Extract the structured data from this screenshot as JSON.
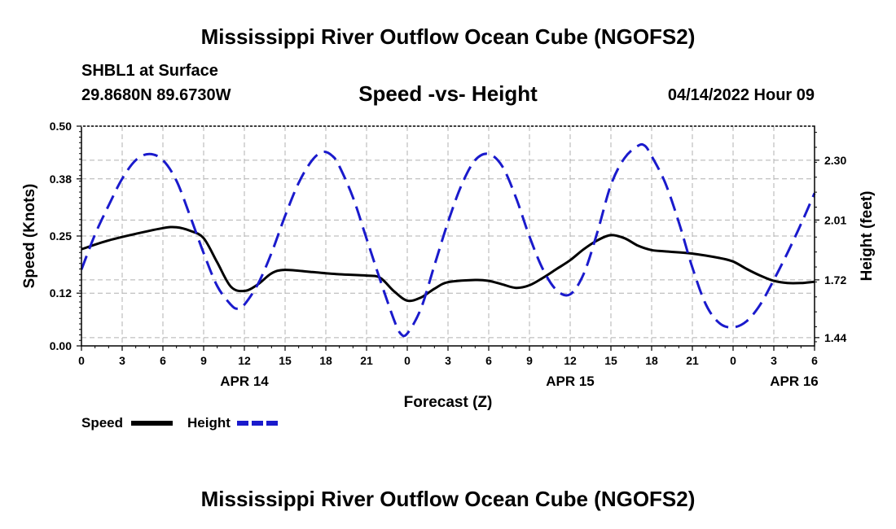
{
  "header": {
    "title": "Mississippi River Outflow Ocean Cube (NGOFS2)",
    "station": "SHBL1 at Surface",
    "coords": "29.8680N  89.6730W",
    "subtitle": "Speed -vs- Height",
    "datestamp": "04/14/2022 Hour 09"
  },
  "footer": {
    "title": "Mississippi River Outflow Ocean Cube (NGOFS2)"
  },
  "chart_data": {
    "type": "line",
    "title": "Speed -vs- Height",
    "xlabel": "Forecast (Z)",
    "ylabel_left": "Speed (Knots)",
    "ylabel_right": "Height (feet)",
    "x_range": [
      0,
      54
    ],
    "x_unit": "hours from APR 14 00Z",
    "x_tick_labels": [
      "0",
      "3",
      "6",
      "9",
      "12",
      "15",
      "18",
      "21",
      "0",
      "3",
      "6",
      "9",
      "12",
      "15",
      "18",
      "21",
      "0",
      "3",
      "6"
    ],
    "day_labels": [
      {
        "hour": 12,
        "label": "APR 14"
      },
      {
        "hour": 36,
        "label": "APR 15"
      },
      {
        "hour": 52.5,
        "label": "APR 16"
      }
    ],
    "left_axis": {
      "range": [
        0,
        0.5
      ],
      "ticks": [
        0.0,
        0.12,
        0.25,
        0.38,
        0.5
      ],
      "tick_labels": [
        "0.00",
        "0.12",
        "0.25",
        "0.38",
        "0.50"
      ]
    },
    "right_axis": {
      "range": [
        1.4,
        2.465
      ],
      "ticks": [
        1.44,
        1.72,
        2.01,
        2.3
      ],
      "tick_labels": [
        "1.44",
        "1.72",
        "2.01",
        "2.30"
      ]
    },
    "grid": true,
    "legend": {
      "position": "bottom-left",
      "items": [
        {
          "name": "Speed",
          "color": "#000000",
          "style": "solid"
        },
        {
          "name": "Height",
          "color": "#1a1acc",
          "style": "dashed"
        }
      ]
    },
    "series": [
      {
        "name": "Speed",
        "axis": "left",
        "color": "#000000",
        "points": [
          [
            0,
            0.22
          ],
          [
            2,
            0.24
          ],
          [
            4,
            0.255
          ],
          [
            6,
            0.268
          ],
          [
            7,
            0.27
          ],
          [
            8,
            0.262
          ],
          [
            9,
            0.245
          ],
          [
            10,
            0.19
          ],
          [
            11,
            0.135
          ],
          [
            12,
            0.125
          ],
          [
            13,
            0.14
          ],
          [
            14,
            0.165
          ],
          [
            15,
            0.173
          ],
          [
            17,
            0.168
          ],
          [
            19,
            0.163
          ],
          [
            21,
            0.16
          ],
          [
            22,
            0.155
          ],
          [
            23,
            0.125
          ],
          [
            24,
            0.103
          ],
          [
            25,
            0.11
          ],
          [
            26,
            0.13
          ],
          [
            27,
            0.145
          ],
          [
            29,
            0.15
          ],
          [
            30,
            0.148
          ],
          [
            31,
            0.14
          ],
          [
            32,
            0.132
          ],
          [
            33,
            0.138
          ],
          [
            34,
            0.155
          ],
          [
            35,
            0.175
          ],
          [
            36,
            0.195
          ],
          [
            37,
            0.22
          ],
          [
            38,
            0.24
          ],
          [
            39,
            0.252
          ],
          [
            40,
            0.245
          ],
          [
            41,
            0.228
          ],
          [
            42,
            0.218
          ],
          [
            43,
            0.215
          ],
          [
            45,
            0.21
          ],
          [
            47,
            0.2
          ],
          [
            48,
            0.192
          ],
          [
            49,
            0.175
          ],
          [
            50,
            0.16
          ],
          [
            51,
            0.148
          ],
          [
            52,
            0.143
          ],
          [
            53,
            0.143
          ],
          [
            54,
            0.146
          ]
        ]
      },
      {
        "name": "Height",
        "axis": "right",
        "color": "#1a1acc",
        "points": [
          [
            0,
            1.77
          ],
          [
            1,
            1.94
          ],
          [
            2,
            2.08
          ],
          [
            3,
            2.21
          ],
          [
            4,
            2.3
          ],
          [
            5,
            2.33
          ],
          [
            6,
            2.3
          ],
          [
            7,
            2.2
          ],
          [
            8,
            2.03
          ],
          [
            9,
            1.85
          ],
          [
            10,
            1.69
          ],
          [
            11,
            1.6
          ],
          [
            11.5,
            1.58
          ],
          [
            12,
            1.6
          ],
          [
            13,
            1.7
          ],
          [
            14,
            1.85
          ],
          [
            15,
            2.03
          ],
          [
            16,
            2.19
          ],
          [
            17,
            2.3
          ],
          [
            17.8,
            2.34
          ],
          [
            18.5,
            2.32
          ],
          [
            19,
            2.27
          ],
          [
            20,
            2.12
          ],
          [
            21,
            1.92
          ],
          [
            22,
            1.72
          ],
          [
            23,
            1.53
          ],
          [
            23.5,
            1.46
          ],
          [
            24,
            1.46
          ],
          [
            25,
            1.58
          ],
          [
            26,
            1.79
          ],
          [
            27,
            2.0
          ],
          [
            28,
            2.18
          ],
          [
            29,
            2.3
          ],
          [
            30,
            2.33
          ],
          [
            31,
            2.27
          ],
          [
            32,
            2.12
          ],
          [
            33,
            1.93
          ],
          [
            34,
            1.77
          ],
          [
            35,
            1.67
          ],
          [
            36,
            1.65
          ],
          [
            37,
            1.75
          ],
          [
            38,
            1.95
          ],
          [
            39,
            2.18
          ],
          [
            40,
            2.31
          ],
          [
            41,
            2.37
          ],
          [
            41.5,
            2.37
          ],
          [
            42,
            2.32
          ],
          [
            43,
            2.19
          ],
          [
            44,
            2.0
          ],
          [
            45,
            1.78
          ],
          [
            46,
            1.6
          ],
          [
            47,
            1.51
          ],
          [
            48,
            1.49
          ],
          [
            49,
            1.52
          ],
          [
            50,
            1.6
          ],
          [
            51,
            1.72
          ],
          [
            52,
            1.85
          ],
          [
            53,
            1.99
          ],
          [
            54,
            2.14
          ]
        ]
      }
    ]
  }
}
